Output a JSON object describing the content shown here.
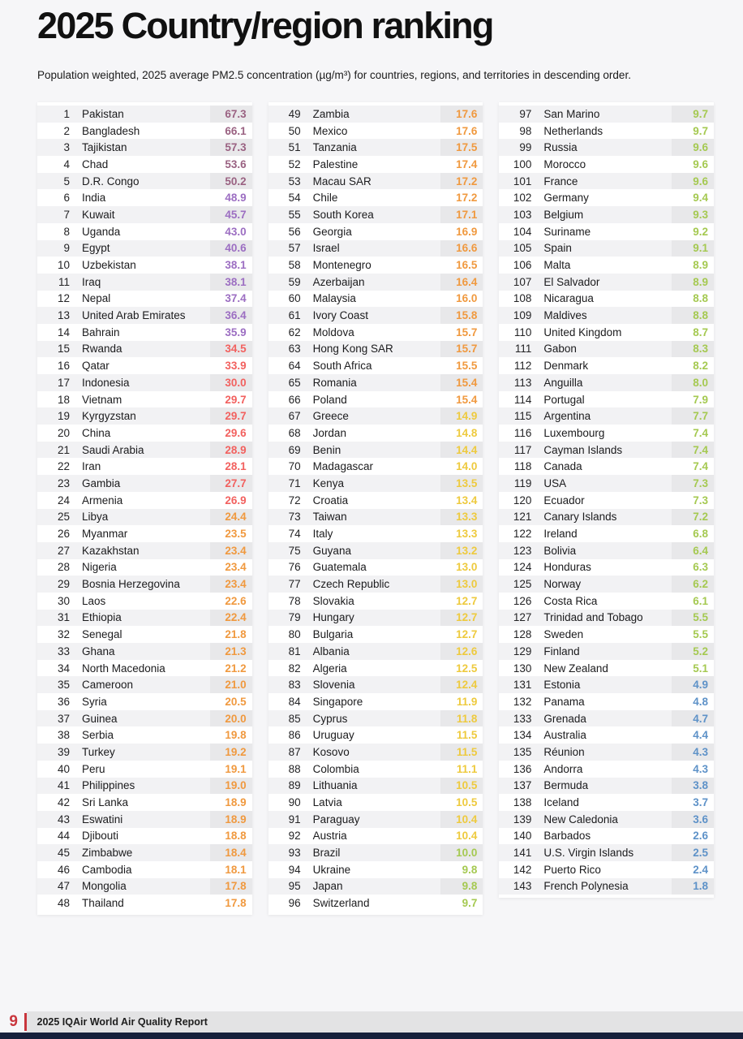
{
  "page": {
    "title": "2025 Country/region ranking",
    "subtitle": "Population weighted, 2025 average PM2.5 concentration (µg/m³) for countries, regions, and territories in descending order.",
    "footer": {
      "page_number": "9",
      "report_title": "2025 IQAir World Air Quality Report"
    }
  },
  "colors": {
    "accent_red": "#c9353c",
    "bottom_bar_navy": "#17213c",
    "bands": {
      "maroon": "#9a6282",
      "purple": "#9c6ec2",
      "red": "#f2615f",
      "orange": "#f0993f",
      "yellow": "#eeca3e",
      "green": "#a5c951",
      "blue": "#5e92c8"
    }
  },
  "columns": [
    {
      "rows": [
        [
          1,
          "Pakistan",
          "67.3",
          "maroon"
        ],
        [
          2,
          "Bangladesh",
          "66.1",
          "maroon"
        ],
        [
          3,
          "Tajikistan",
          "57.3",
          "maroon"
        ],
        [
          4,
          "Chad",
          "53.6",
          "maroon"
        ],
        [
          5,
          "D.R. Congo",
          "50.2",
          "maroon"
        ],
        [
          6,
          "India",
          "48.9",
          "purple"
        ],
        [
          7,
          "Kuwait",
          "45.7",
          "purple"
        ],
        [
          8,
          "Uganda",
          "43.0",
          "purple"
        ],
        [
          9,
          "Egypt",
          "40.6",
          "purple"
        ],
        [
          10,
          "Uzbekistan",
          "38.1",
          "purple"
        ],
        [
          11,
          "Iraq",
          "38.1",
          "purple"
        ],
        [
          12,
          "Nepal",
          "37.4",
          "purple"
        ],
        [
          13,
          "United Arab Emirates",
          "36.4",
          "purple"
        ],
        [
          14,
          "Bahrain",
          "35.9",
          "purple"
        ],
        [
          15,
          "Rwanda",
          "34.5",
          "red"
        ],
        [
          16,
          "Qatar",
          "33.9",
          "red"
        ],
        [
          17,
          "Indonesia",
          "30.0",
          "red"
        ],
        [
          18,
          "Vietnam",
          "29.7",
          "red"
        ],
        [
          19,
          "Kyrgyzstan",
          "29.7",
          "red"
        ],
        [
          20,
          "China",
          "29.6",
          "red"
        ],
        [
          21,
          "Saudi Arabia",
          "28.9",
          "red"
        ],
        [
          22,
          "Iran",
          "28.1",
          "red"
        ],
        [
          23,
          "Gambia",
          "27.7",
          "red"
        ],
        [
          24,
          "Armenia",
          "26.9",
          "red"
        ],
        [
          25,
          "Libya",
          "24.4",
          "orange"
        ],
        [
          26,
          "Myanmar",
          "23.5",
          "orange"
        ],
        [
          27,
          "Kazakhstan",
          "23.4",
          "orange"
        ],
        [
          28,
          "Nigeria",
          "23.4",
          "orange"
        ],
        [
          29,
          "Bosnia Herzegovina",
          "23.4",
          "orange"
        ],
        [
          30,
          "Laos",
          "22.6",
          "orange"
        ],
        [
          31,
          "Ethiopia",
          "22.4",
          "orange"
        ],
        [
          32,
          "Senegal",
          "21.8",
          "orange"
        ],
        [
          33,
          "Ghana",
          "21.3",
          "orange"
        ],
        [
          34,
          "North Macedonia",
          "21.2",
          "orange"
        ],
        [
          35,
          "Cameroon",
          "21.0",
          "orange"
        ],
        [
          36,
          "Syria",
          "20.5",
          "orange"
        ],
        [
          37,
          "Guinea",
          "20.0",
          "orange"
        ],
        [
          38,
          "Serbia",
          "19.8",
          "orange"
        ],
        [
          39,
          "Turkey",
          "19.2",
          "orange"
        ],
        [
          40,
          "Peru",
          "19.1",
          "orange"
        ],
        [
          41,
          "Philippines",
          "19.0",
          "orange"
        ],
        [
          42,
          "Sri Lanka",
          "18.9",
          "orange"
        ],
        [
          43,
          "Eswatini",
          "18.9",
          "orange"
        ],
        [
          44,
          "Djibouti",
          "18.8",
          "orange"
        ],
        [
          45,
          "Zimbabwe",
          "18.4",
          "orange"
        ],
        [
          46,
          "Cambodia",
          "18.1",
          "orange"
        ],
        [
          47,
          "Mongolia",
          "17.8",
          "orange"
        ],
        [
          48,
          "Thailand",
          "17.8",
          "orange"
        ]
      ]
    },
    {
      "rows": [
        [
          49,
          "Zambia",
          "17.6",
          "orange"
        ],
        [
          50,
          "Mexico",
          "17.6",
          "orange"
        ],
        [
          51,
          "Tanzania",
          "17.5",
          "orange"
        ],
        [
          52,
          "Palestine",
          "17.4",
          "orange"
        ],
        [
          53,
          "Macau SAR",
          "17.2",
          "orange"
        ],
        [
          54,
          "Chile",
          "17.2",
          "orange"
        ],
        [
          55,
          "South Korea",
          "17.1",
          "orange"
        ],
        [
          56,
          "Georgia",
          "16.9",
          "orange"
        ],
        [
          57,
          "Israel",
          "16.6",
          "orange"
        ],
        [
          58,
          "Montenegro",
          "16.5",
          "orange"
        ],
        [
          59,
          "Azerbaijan",
          "16.4",
          "orange"
        ],
        [
          60,
          "Malaysia",
          "16.0",
          "orange"
        ],
        [
          61,
          "Ivory Coast",
          "15.8",
          "orange"
        ],
        [
          62,
          "Moldova",
          "15.7",
          "orange"
        ],
        [
          63,
          "Hong Kong SAR",
          "15.7",
          "orange"
        ],
        [
          64,
          "South Africa",
          "15.5",
          "orange"
        ],
        [
          65,
          "Romania",
          "15.4",
          "orange"
        ],
        [
          66,
          "Poland",
          "15.4",
          "orange"
        ],
        [
          67,
          "Greece",
          "14.9",
          "yellow"
        ],
        [
          68,
          "Jordan",
          "14.8",
          "yellow"
        ],
        [
          69,
          "Benin",
          "14.4",
          "yellow"
        ],
        [
          70,
          "Madagascar",
          "14.0",
          "yellow"
        ],
        [
          71,
          "Kenya",
          "13.5",
          "yellow"
        ],
        [
          72,
          "Croatia",
          "13.4",
          "yellow"
        ],
        [
          73,
          "Taiwan",
          "13.3",
          "yellow"
        ],
        [
          74,
          "Italy",
          "13.3",
          "yellow"
        ],
        [
          75,
          "Guyana",
          "13.2",
          "yellow"
        ],
        [
          76,
          "Guatemala",
          "13.0",
          "yellow"
        ],
        [
          77,
          "Czech Republic",
          "13.0",
          "yellow"
        ],
        [
          78,
          "Slovakia",
          "12.7",
          "yellow"
        ],
        [
          79,
          "Hungary",
          "12.7",
          "yellow"
        ],
        [
          80,
          "Bulgaria",
          "12.7",
          "yellow"
        ],
        [
          81,
          "Albania",
          "12.6",
          "yellow"
        ],
        [
          82,
          "Algeria",
          "12.5",
          "yellow"
        ],
        [
          83,
          "Slovenia",
          "12.4",
          "yellow"
        ],
        [
          84,
          "Singapore",
          "11.9",
          "yellow"
        ],
        [
          85,
          "Cyprus",
          "11.8",
          "yellow"
        ],
        [
          86,
          "Uruguay",
          "11.5",
          "yellow"
        ],
        [
          87,
          "Kosovo",
          "11.5",
          "yellow"
        ],
        [
          88,
          "Colombia",
          "11.1",
          "yellow"
        ],
        [
          89,
          "Lithuania",
          "10.5",
          "yellow"
        ],
        [
          90,
          "Latvia",
          "10.5",
          "yellow"
        ],
        [
          91,
          "Paraguay",
          "10.4",
          "yellow"
        ],
        [
          92,
          "Austria",
          "10.4",
          "yellow"
        ],
        [
          93,
          "Brazil",
          "10.0",
          "green"
        ],
        [
          94,
          "Ukraine",
          "9.8",
          "green"
        ],
        [
          95,
          "Japan",
          "9.8",
          "green"
        ],
        [
          96,
          "Switzerland",
          "9.7",
          "green"
        ]
      ]
    },
    {
      "rows": [
        [
          97,
          "San Marino",
          "9.7",
          "green"
        ],
        [
          98,
          "Netherlands",
          "9.7",
          "green"
        ],
        [
          99,
          "Russia",
          "9.6",
          "green"
        ],
        [
          100,
          "Morocco",
          "9.6",
          "green"
        ],
        [
          101,
          "France",
          "9.6",
          "green"
        ],
        [
          102,
          "Germany",
          "9.4",
          "green"
        ],
        [
          103,
          "Belgium",
          "9.3",
          "green"
        ],
        [
          104,
          "Suriname",
          "9.2",
          "green"
        ],
        [
          105,
          "Spain",
          "9.1",
          "green"
        ],
        [
          106,
          "Malta",
          "8.9",
          "green"
        ],
        [
          107,
          "El Salvador",
          "8.9",
          "green"
        ],
        [
          108,
          "Nicaragua",
          "8.8",
          "green"
        ],
        [
          109,
          "Maldives",
          "8.8",
          "green"
        ],
        [
          110,
          "United Kingdom",
          "8.7",
          "green"
        ],
        [
          111,
          "Gabon",
          "8.3",
          "green"
        ],
        [
          112,
          "Denmark",
          "8.2",
          "green"
        ],
        [
          113,
          "Anguilla",
          "8.0",
          "green"
        ],
        [
          114,
          "Portugal",
          "7.9",
          "green"
        ],
        [
          115,
          "Argentina",
          "7.7",
          "green"
        ],
        [
          116,
          "Luxembourg",
          "7.4",
          "green"
        ],
        [
          117,
          "Cayman Islands",
          "7.4",
          "green"
        ],
        [
          118,
          "Canada",
          "7.4",
          "green"
        ],
        [
          119,
          "USA",
          "7.3",
          "green"
        ],
        [
          120,
          "Ecuador",
          "7.3",
          "green"
        ],
        [
          121,
          "Canary Islands",
          "7.2",
          "green"
        ],
        [
          122,
          "Ireland",
          "6.8",
          "green"
        ],
        [
          123,
          "Bolivia",
          "6.4",
          "green"
        ],
        [
          124,
          "Honduras",
          "6.3",
          "green"
        ],
        [
          125,
          "Norway",
          "6.2",
          "green"
        ],
        [
          126,
          "Costa Rica",
          "6.1",
          "green"
        ],
        [
          127,
          "Trinidad and Tobago",
          "5.5",
          "green"
        ],
        [
          128,
          "Sweden",
          "5.5",
          "green"
        ],
        [
          129,
          "Finland",
          "5.2",
          "green"
        ],
        [
          130,
          "New Zealand",
          "5.1",
          "green"
        ],
        [
          131,
          "Estonia",
          "4.9",
          "blue"
        ],
        [
          132,
          "Panama",
          "4.8",
          "blue"
        ],
        [
          133,
          "Grenada",
          "4.7",
          "blue"
        ],
        [
          134,
          "Australia",
          "4.4",
          "blue"
        ],
        [
          135,
          "Réunion",
          "4.3",
          "blue"
        ],
        [
          136,
          "Andorra",
          "4.3",
          "blue"
        ],
        [
          137,
          "Bermuda",
          "3.8",
          "blue"
        ],
        [
          138,
          "Iceland",
          "3.7",
          "blue"
        ],
        [
          139,
          "New Caledonia",
          "3.6",
          "blue"
        ],
        [
          140,
          "Barbados",
          "2.6",
          "blue"
        ],
        [
          141,
          "U.S. Virgin Islands",
          "2.5",
          "blue"
        ],
        [
          142,
          "Puerto Rico",
          "2.4",
          "blue"
        ],
        [
          143,
          "French Polynesia",
          "1.8",
          "blue"
        ]
      ]
    }
  ]
}
